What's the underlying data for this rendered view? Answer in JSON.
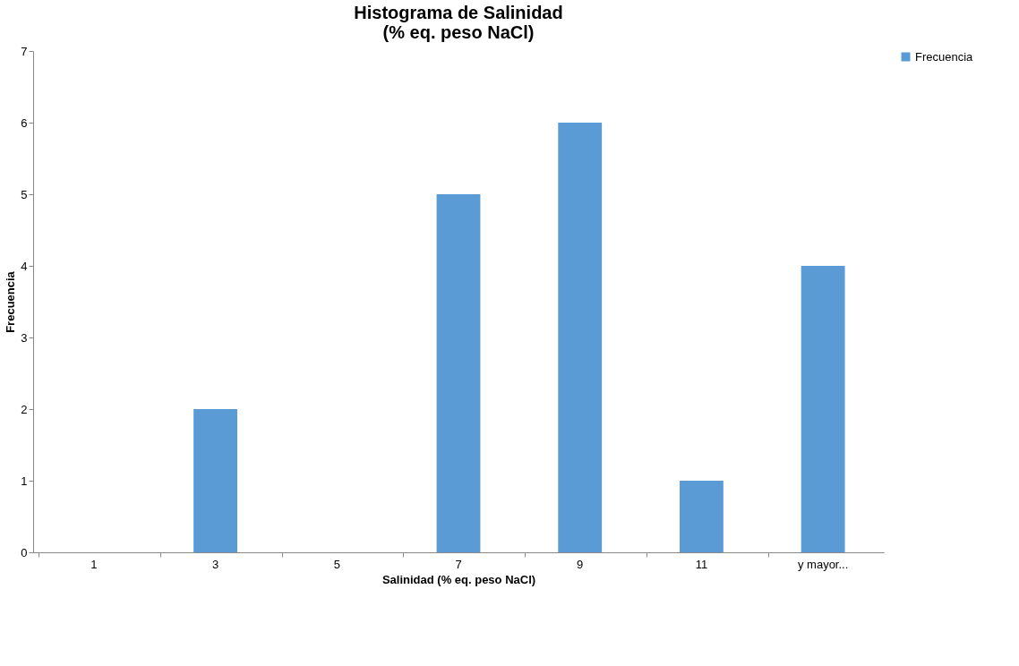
{
  "chart_data": {
    "type": "bar",
    "title": "Histograma de Salinidad\n(% eq. peso NaCl)",
    "xlabel": "Salinidad (% eq. peso NaCl)",
    "ylabel": "Frecuencia",
    "categories": [
      "1",
      "3",
      "5",
      "7",
      "9",
      "11",
      "y mayor..."
    ],
    "series": [
      {
        "name": "Frecuencia",
        "color": "#5b9bd5",
        "values": [
          0,
          2,
          0,
          5,
          6,
          1,
          4
        ]
      }
    ],
    "ylim": [
      0,
      7
    ],
    "yticks": [
      0,
      1,
      2,
      3,
      4,
      5,
      6,
      7
    ],
    "grid": false,
    "legend": "right"
  }
}
